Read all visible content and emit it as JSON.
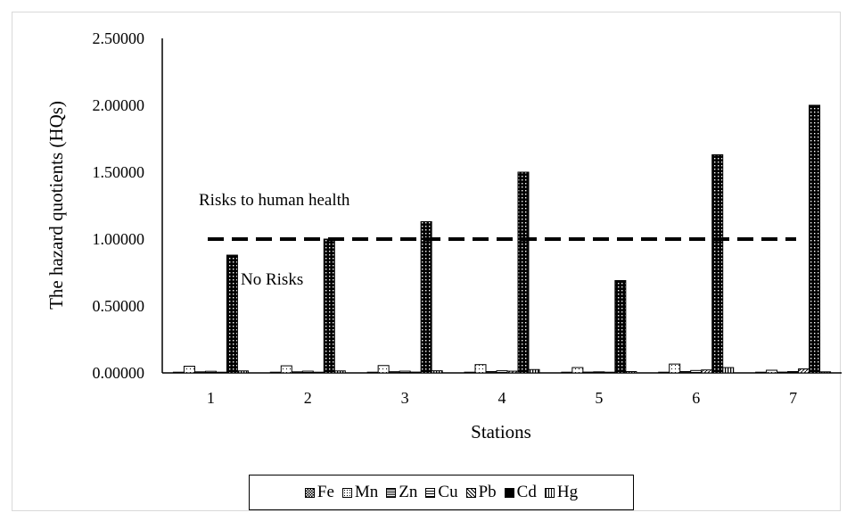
{
  "chart_data": {
    "type": "bar",
    "title": "",
    "xlabel": "Stations",
    "ylabel": "The hazard quotients (HQs)",
    "categories": [
      "1",
      "2",
      "3",
      "4",
      "5",
      "6",
      "7"
    ],
    "ylim": [
      0,
      2.5
    ],
    "yticks": [
      "0.00000",
      "0.50000",
      "1.00000",
      "1.50000",
      "2.00000",
      "2.50000"
    ],
    "grid": false,
    "legend_position": "bottom",
    "series": [
      {
        "name": "Fe",
        "pattern": "checker",
        "values": [
          0.004,
          0.004,
          0.004,
          0.004,
          0.003,
          0.004,
          0.003
        ]
      },
      {
        "name": "Mn",
        "pattern": "dots-light",
        "values": [
          0.05,
          0.053,
          0.055,
          0.062,
          0.04,
          0.066,
          0.02
        ]
      },
      {
        "name": "Zn",
        "pattern": "dense",
        "values": [
          0.008,
          0.008,
          0.009,
          0.01,
          0.006,
          0.01,
          0.006
        ]
      },
      {
        "name": "Cu",
        "pattern": "stripes",
        "values": [
          0.012,
          0.013,
          0.013,
          0.016,
          0.008,
          0.018,
          0.01
        ]
      },
      {
        "name": "Pb",
        "pattern": "diag",
        "values": [
          0.005,
          0.005,
          0.006,
          0.013,
          0.004,
          0.022,
          0.03
        ]
      },
      {
        "name": "Cd",
        "pattern": "dark-dots",
        "values": [
          0.88,
          1.0,
          1.13,
          1.5,
          0.69,
          1.63,
          2.0
        ]
      },
      {
        "name": "Hg",
        "pattern": "vertical",
        "values": [
          0.015,
          0.015,
          0.016,
          0.025,
          0.01,
          0.04,
          0.008
        ]
      }
    ],
    "reference_line": {
      "value": 1.0,
      "style": "dashed"
    },
    "annotations": {
      "above": "Risks to human health",
      "below": "No Risks"
    }
  }
}
